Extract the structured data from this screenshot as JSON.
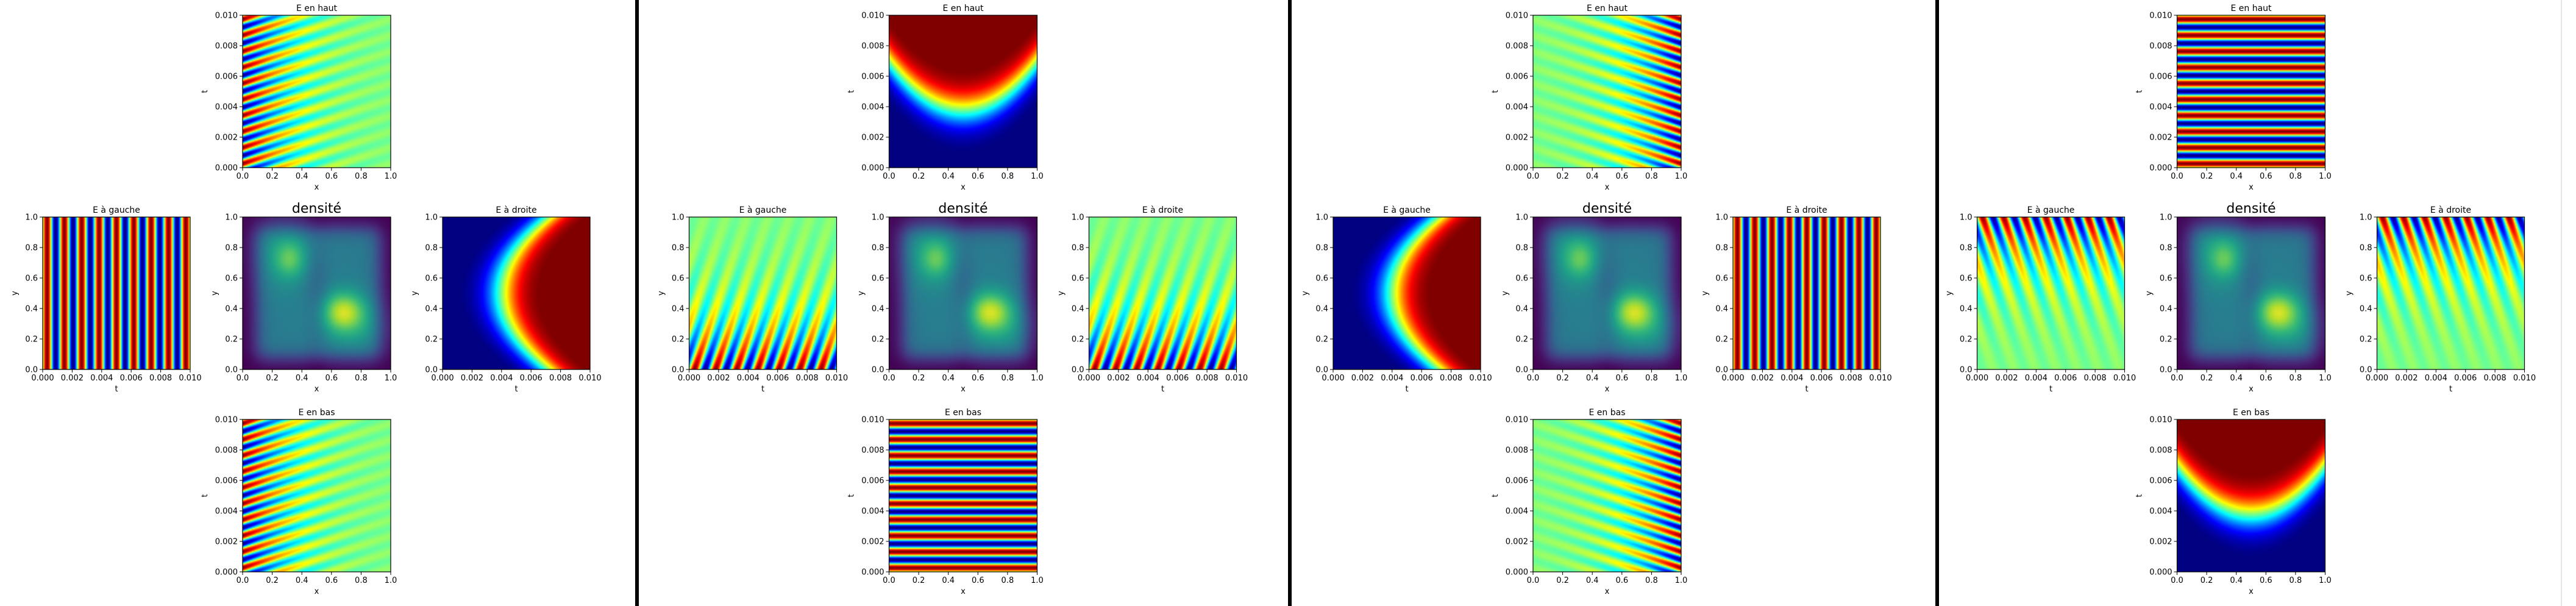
{
  "figure": {
    "separator_color": "#000000",
    "colormap": "jet",
    "density_colormap": "viridis"
  },
  "panels": [
    {
      "boundaries": {
        "top": {
          "title": "E en haut",
          "xlabel": "x",
          "ylabel": "t",
          "xlim": [
            0,
            1
          ],
          "ylim": [
            0,
            0.01
          ],
          "pattern": "left-wave"
        },
        "left": {
          "title": "E à gauche",
          "xlabel": "t",
          "ylabel": "y",
          "xlim": [
            0,
            0.01
          ],
          "ylim": [
            0,
            1
          ],
          "pattern": "vertical-stripes"
        },
        "right": {
          "title": "E à droite",
          "xlabel": "t",
          "ylabel": "y",
          "xlim": [
            0,
            0.01
          ],
          "ylim": [
            0,
            1
          ],
          "pattern": "arc-right"
        },
        "bottom": {
          "title": "E en bas",
          "xlabel": "x",
          "ylabel": "t",
          "xlim": [
            0,
            1
          ],
          "ylim": [
            0,
            0.01
          ],
          "pattern": "left-wave"
        }
      },
      "density": {
        "title": "densité",
        "xlabel": "x",
        "ylabel": "y",
        "xlim": [
          0,
          1
        ],
        "ylim": [
          0,
          1
        ]
      }
    },
    {
      "boundaries": {
        "top": {
          "title": "E en haut",
          "xlabel": "x",
          "ylabel": "t",
          "xlim": [
            0,
            1
          ],
          "ylim": [
            0,
            0.01
          ],
          "pattern": "arc-top"
        },
        "left": {
          "title": "E à gauche",
          "xlabel": "t",
          "ylabel": "y",
          "xlim": [
            0,
            0.01
          ],
          "ylim": [
            0,
            1
          ],
          "pattern": "bottom-wave"
        },
        "right": {
          "title": "E à droite",
          "xlabel": "t",
          "ylabel": "y",
          "xlim": [
            0,
            0.01
          ],
          "ylim": [
            0,
            1
          ],
          "pattern": "bottom-wave"
        },
        "bottom": {
          "title": "E en bas",
          "xlabel": "x",
          "ylabel": "t",
          "xlim": [
            0,
            1
          ],
          "ylim": [
            0,
            0.01
          ],
          "pattern": "horizontal-stripes"
        }
      },
      "density": {
        "title": "densité",
        "xlabel": "x",
        "ylabel": "y",
        "xlim": [
          0,
          1
        ],
        "ylim": [
          0,
          1
        ]
      }
    },
    {
      "boundaries": {
        "top": {
          "title": "E en haut",
          "xlabel": "x",
          "ylabel": "t",
          "xlim": [
            0,
            1
          ],
          "ylim": [
            0,
            0.01
          ],
          "pattern": "right-wave"
        },
        "left": {
          "title": "E à gauche",
          "xlabel": "t",
          "ylabel": "y",
          "xlim": [
            0,
            0.01
          ],
          "ylim": [
            0,
            1
          ],
          "pattern": "arc-right"
        },
        "right": {
          "title": "E à droite",
          "xlabel": "t",
          "ylabel": "y",
          "xlim": [
            0,
            0.01
          ],
          "ylim": [
            0,
            1
          ],
          "pattern": "vertical-stripes"
        },
        "bottom": {
          "title": "E en bas",
          "xlabel": "x",
          "ylabel": "t",
          "xlim": [
            0,
            1
          ],
          "ylim": [
            0,
            0.01
          ],
          "pattern": "right-wave"
        }
      },
      "density": {
        "title": "densité",
        "xlabel": "x",
        "ylabel": "y",
        "xlim": [
          0,
          1
        ],
        "ylim": [
          0,
          1
        ]
      }
    },
    {
      "boundaries": {
        "top": {
          "title": "E en haut",
          "xlabel": "x",
          "ylabel": "t",
          "xlim": [
            0,
            1
          ],
          "ylim": [
            0,
            0.01
          ],
          "pattern": "horizontal-stripes"
        },
        "left": {
          "title": "E à gauche",
          "xlabel": "t",
          "ylabel": "y",
          "xlim": [
            0,
            0.01
          ],
          "ylim": [
            0,
            1
          ],
          "pattern": "top-wave"
        },
        "right": {
          "title": "E à droite",
          "xlabel": "t",
          "ylabel": "y",
          "xlim": [
            0,
            0.01
          ],
          "ylim": [
            0,
            1
          ],
          "pattern": "top-wave"
        },
        "bottom": {
          "title": "E en bas",
          "xlabel": "x",
          "ylabel": "t",
          "xlim": [
            0,
            1
          ],
          "ylim": [
            0,
            0.01
          ],
          "pattern": "arc-top"
        }
      },
      "density": {
        "title": "densité",
        "xlabel": "x",
        "ylabel": "y",
        "xlim": [
          0,
          1
        ],
        "ylim": [
          0,
          1
        ]
      }
    }
  ],
  "ticks": {
    "unit": [
      "0.0",
      "0.2",
      "0.4",
      "0.6",
      "0.8",
      "1.0"
    ],
    "time": [
      "0.000",
      "0.002",
      "0.004",
      "0.006",
      "0.008",
      "0.010"
    ]
  },
  "chart_data": [
    {
      "type": "heatmap",
      "title": "E en haut",
      "xlabel": "x",
      "ylabel": "t",
      "xlim": [
        0,
        1
      ],
      "ylim": [
        0,
        0.01
      ]
    },
    {
      "type": "heatmap",
      "title": "E à gauche",
      "xlabel": "t",
      "ylabel": "y",
      "xlim": [
        0,
        0.01
      ],
      "ylim": [
        0,
        1
      ]
    },
    {
      "type": "heatmap",
      "title": "densité",
      "xlabel": "x",
      "ylabel": "y",
      "xlim": [
        0,
        1
      ],
      "ylim": [
        0,
        1
      ]
    },
    {
      "type": "heatmap",
      "title": "E à droite",
      "xlabel": "t",
      "ylabel": "y",
      "xlim": [
        0,
        0.01
      ],
      "ylim": [
        0,
        1
      ]
    },
    {
      "type": "heatmap",
      "title": "E en bas",
      "xlabel": "x",
      "ylabel": "t",
      "xlim": [
        0,
        1
      ],
      "ylim": [
        0,
        0.01
      ]
    }
  ]
}
